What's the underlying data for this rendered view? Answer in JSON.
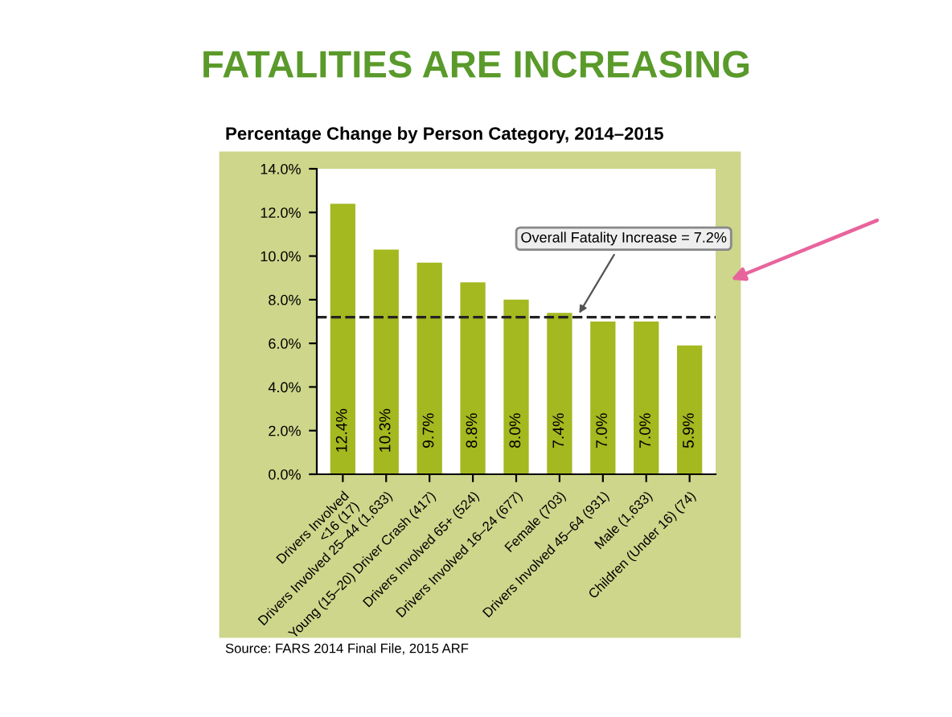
{
  "chart_data": {
    "type": "bar",
    "title": "FATALITIES ARE INCREASING",
    "subtitle": "Percentage Change by Person Category, 2014–2015",
    "categories": [
      "Drivers Involved\n<16 (17)",
      "Drivers Involved 25–44 (1,633)",
      "Young (15–20) Driver Crash (417)",
      "Drivers Involved 65+ (524)",
      "Drivers Involved 16–24 (677)",
      "Female (703)",
      "Drivers Involved 45–64 (931)",
      "Male (1,633)",
      "Children (Under 16) (74)"
    ],
    "values": [
      12.4,
      10.3,
      9.7,
      8.8,
      8.0,
      7.4,
      7.0,
      7.0,
      5.9
    ],
    "value_labels": [
      "12.4%",
      "10.3%",
      "9.7%",
      "8.8%",
      "8.0%",
      "7.4%",
      "7.0%",
      "7.0%",
      "5.9%"
    ],
    "color": "#a4b820",
    "ylim": [
      0,
      14
    ],
    "yticks": [
      {
        "value": 0,
        "label": "0.0%"
      },
      {
        "value": 2,
        "label": "2.0%"
      },
      {
        "value": 4,
        "label": "4.0%"
      },
      {
        "value": 6,
        "label": "6.0%"
      },
      {
        "value": 8,
        "label": "8.0%"
      },
      {
        "value": 10,
        "label": "10.0%"
      },
      {
        "value": 12,
        "label": "12.0%"
      },
      {
        "value": 14,
        "label": "14.0%"
      }
    ],
    "ref_lines": [
      {
        "axis": "y",
        "value": 7.2,
        "label": "Overall Fatality Increase = 7.2%",
        "line_style": "dashed",
        "color": "#222222"
      }
    ],
    "annotations": [
      "Source: FARS 2014 Final File, 2015 ARF"
    ],
    "grid": false,
    "legend": false
  }
}
